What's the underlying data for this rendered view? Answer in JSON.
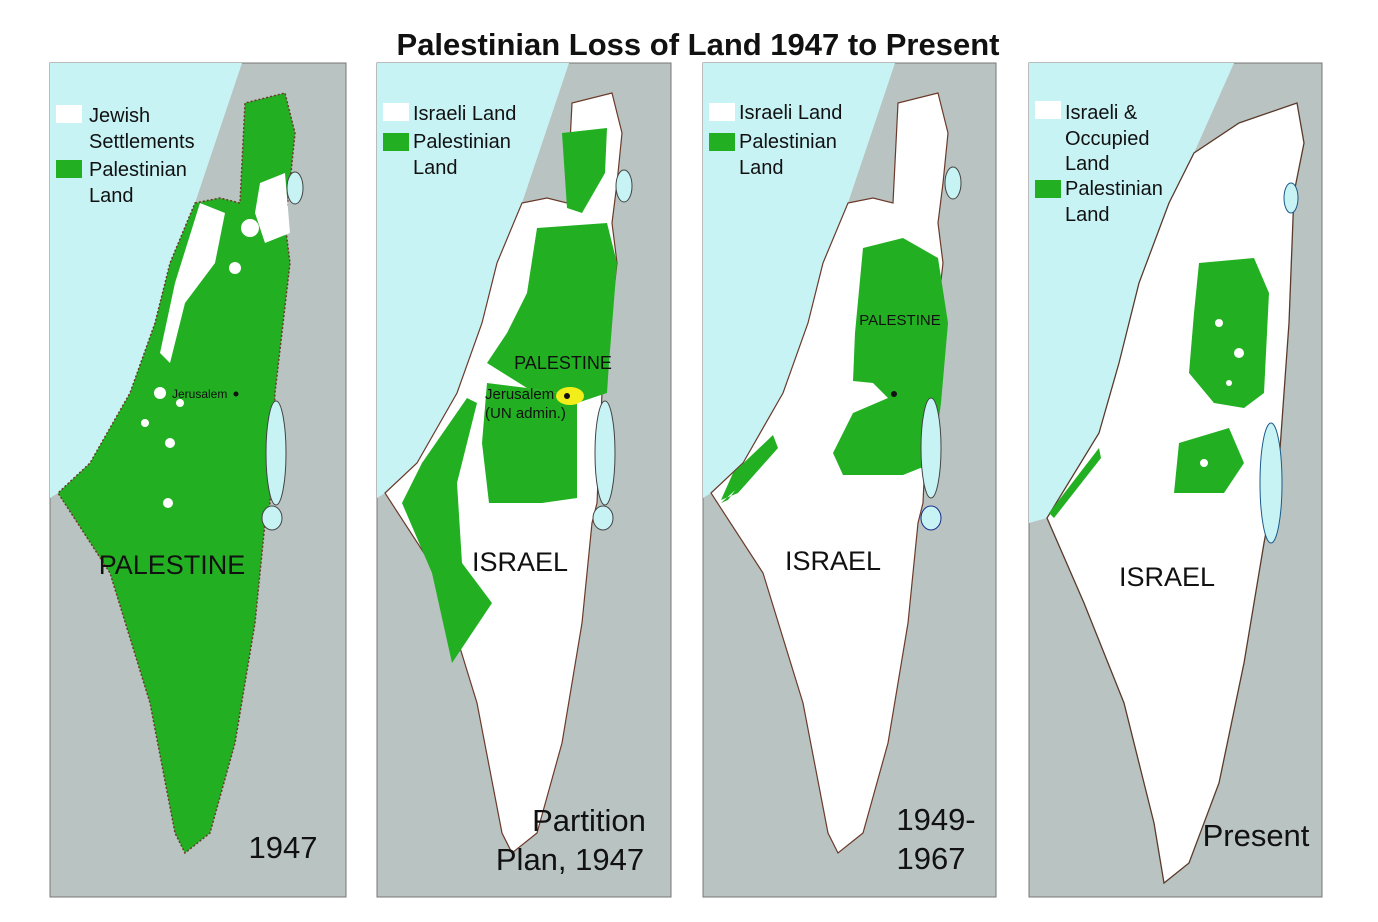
{
  "title": "Palestinian Loss of Land 1947 to Present",
  "colors": {
    "sea": "#c8f3f5",
    "neighbor_land": "#b9c3c1",
    "palestinian_land": "#22b022",
    "israeli_land": "#ffffff",
    "jerusalem_zone": "#f2ee1a"
  },
  "maps": [
    {
      "legend": [
        {
          "swatch": "white",
          "lines": [
            "Jewish",
            "Settlements"
          ]
        },
        {
          "swatch": "green",
          "lines": [
            "Palestinian",
            "Land"
          ]
        }
      ],
      "labels": {
        "region": "PALESTINE",
        "city": "Jerusalem"
      },
      "caption": [
        "1947"
      ]
    },
    {
      "legend": [
        {
          "swatch": "white",
          "lines": [
            "Israeli Land"
          ]
        },
        {
          "swatch": "green",
          "lines": [
            "Palestinian",
            "Land"
          ]
        }
      ],
      "labels": {
        "region": "PALESTINE",
        "city": "Jerusalem",
        "city_note": "(UN admin.)",
        "country": "ISRAEL"
      },
      "caption": [
        "Partition",
        "Plan, 1947"
      ]
    },
    {
      "legend": [
        {
          "swatch": "white",
          "lines": [
            "Israeli Land"
          ]
        },
        {
          "swatch": "green",
          "lines": [
            "Palestinian",
            "Land"
          ]
        }
      ],
      "labels": {
        "region": "PALESTINE",
        "country": "ISRAEL"
      },
      "caption": [
        "1949-",
        "1967"
      ]
    },
    {
      "legend": [
        {
          "swatch": "white",
          "lines": [
            "Israeli &",
            "Occupied",
            "Land"
          ]
        },
        {
          "swatch": "green",
          "lines": [
            "Palestinian",
            "Land"
          ]
        }
      ],
      "labels": {
        "country": "ISRAEL"
      },
      "caption": [
        "Present"
      ]
    }
  ]
}
